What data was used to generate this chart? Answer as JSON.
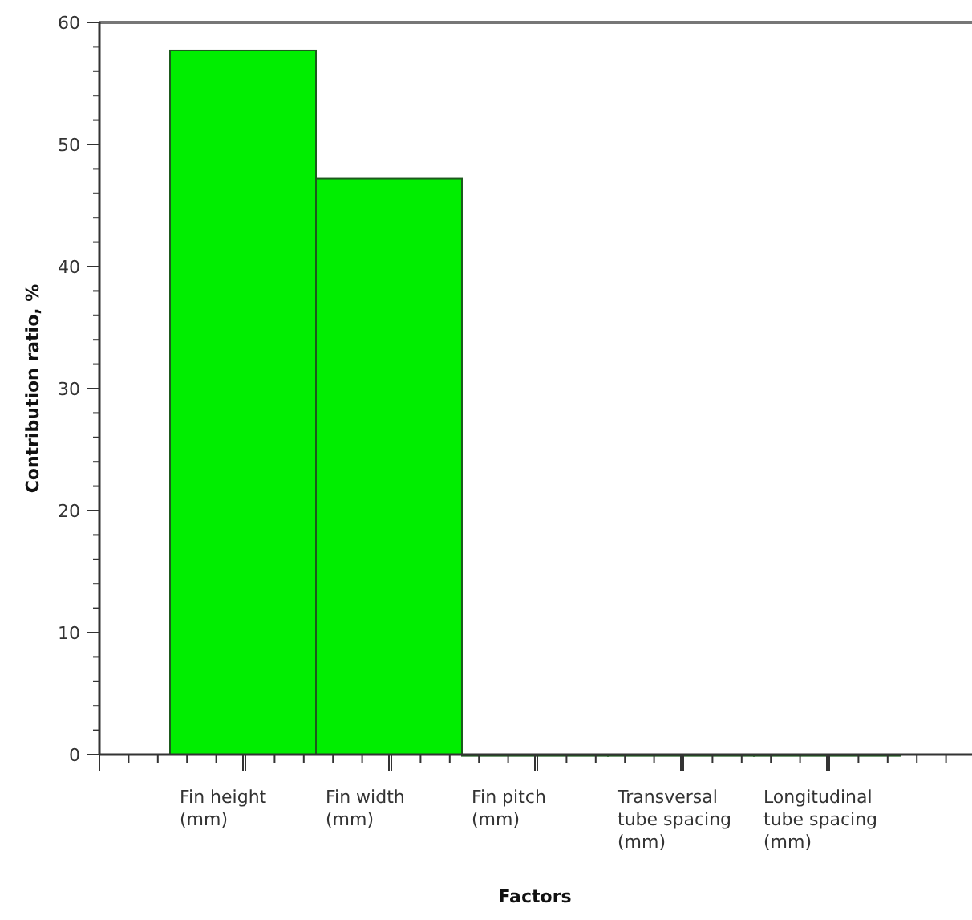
{
  "chart_data": {
    "type": "bar",
    "xlabel": "Factors",
    "ylabel": "Contribution ratio, %",
    "categories": [
      "Fin height (mm)",
      "Fin width (mm)",
      "Fin pitch (mm)",
      "Transversal tube spacing (mm)",
      "Longitudinal tube spacing (mm)"
    ],
    "values": [
      57.7,
      47.2,
      0,
      0,
      0
    ],
    "color": "#00ee00",
    "ylim": [
      0,
      60
    ],
    "yticks": [
      0,
      10,
      20,
      30,
      40,
      50,
      60
    ],
    "grid": false
  }
}
